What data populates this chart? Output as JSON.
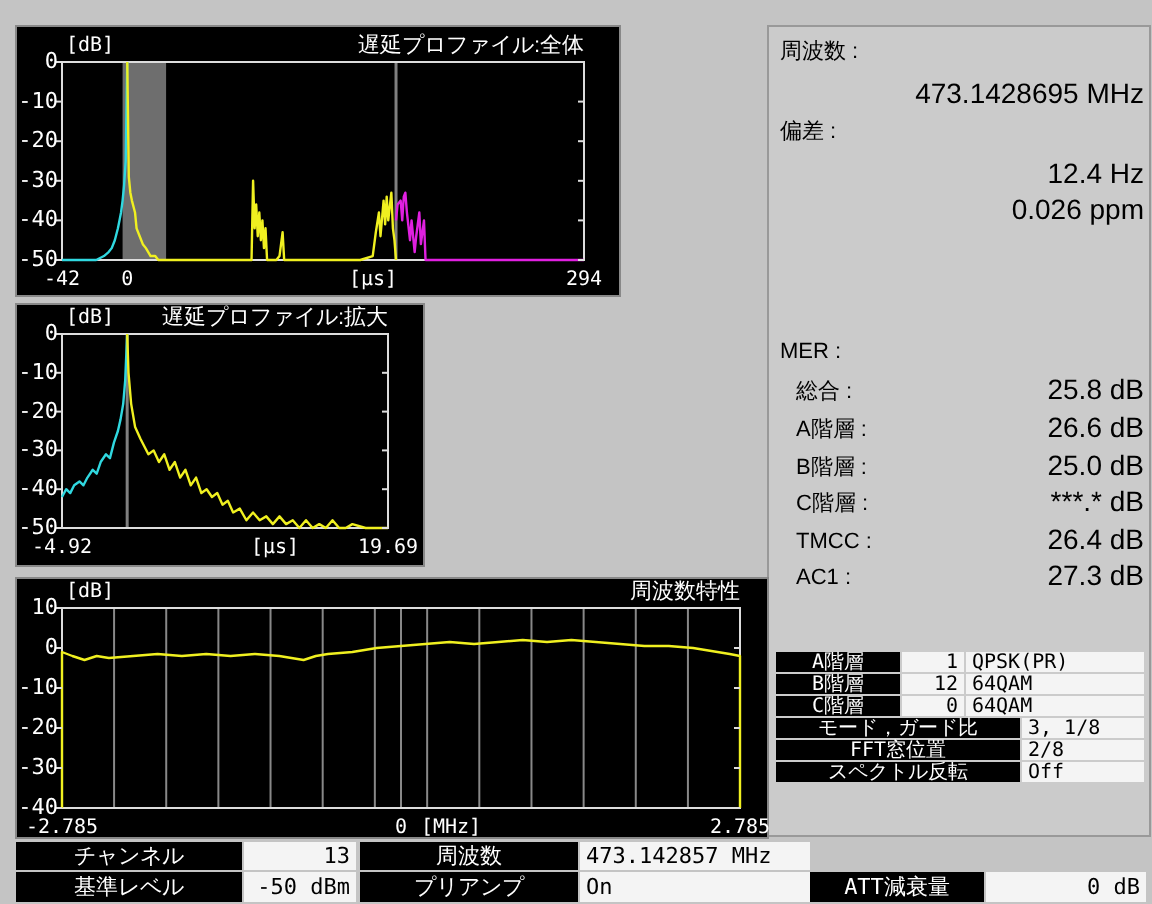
{
  "chart_data": [
    {
      "type": "line",
      "title": "遅延プロファイル:全体",
      "ylabel": "[dB]",
      "xlabel": "[μs]",
      "xlim": [
        -42,
        294
      ],
      "xticks": [
        -42,
        0,
        294
      ],
      "ylim": [
        -50,
        0
      ],
      "yticks": [
        0,
        -10,
        -20,
        -30,
        -40,
        -50
      ],
      "bands": [
        {
          "axis": "x",
          "from": -3,
          "to": 25,
          "color": "#6e6e6e"
        }
      ],
      "ref_lines": [
        {
          "axis": "x",
          "value": 173,
          "color": "#808080"
        }
      ],
      "series": [
        {
          "color": "#30d8e0",
          "x": [
            -42,
            -20,
            -15,
            -12,
            -10,
            -8,
            -6,
            -5,
            -4,
            -3,
            -2,
            -1,
            0
          ],
          "values": [
            -50,
            -50,
            -49,
            -48,
            -47,
            -45,
            -42,
            -40,
            -38,
            -35,
            -31,
            -25,
            0
          ]
        },
        {
          "color": "#f0f020",
          "x": [
            0,
            1,
            2,
            3,
            5,
            6,
            8,
            10,
            12,
            15,
            18,
            20,
            80,
            81,
            82,
            83,
            84,
            85,
            86,
            87,
            88,
            89,
            90,
            92,
            94,
            96,
            98,
            100,
            101,
            102,
            150,
            158,
            160,
            162,
            163,
            165,
            166,
            167,
            168,
            170,
            171,
            172,
            173
          ],
          "values": [
            0,
            -29,
            -33,
            -35,
            -38,
            -42,
            -44,
            -46,
            -47,
            -49,
            -49,
            -50,
            -50,
            -30,
            -42,
            -36,
            -44,
            -38,
            -45,
            -40,
            -47,
            -42,
            -50,
            -50,
            -50,
            -50,
            -49,
            -43,
            -50,
            -50,
            -50,
            -49,
            -43,
            -38,
            -44,
            -35,
            -41,
            -34,
            -40,
            -33,
            -42,
            -45,
            -50
          ]
        },
        {
          "color": "#e020e0",
          "x": [
            173,
            174,
            176,
            177,
            178,
            179,
            180,
            182,
            183,
            185,
            186,
            188,
            189,
            191,
            192,
            294
          ],
          "values": [
            -40,
            -36,
            -35,
            -40,
            -34,
            -33,
            -38,
            -45,
            -40,
            -48,
            -44,
            -38,
            -46,
            -40,
            -50,
            -50
          ]
        }
      ]
    },
    {
      "type": "line",
      "title": "遅延プロファイル:拡大",
      "ylabel": "[dB]",
      "xlabel": "[μs]",
      "xlim": [
        -4.92,
        19.69
      ],
      "xticks": [
        -4.92,
        19.69
      ],
      "ylim": [
        -50,
        0
      ],
      "yticks": [
        0,
        -10,
        -20,
        -30,
        -40,
        -50
      ],
      "ref_lines": [
        {
          "axis": "x",
          "value": 0,
          "color": "#808080"
        }
      ],
      "series": [
        {
          "color": "#30d8e0",
          "x": [
            -4.92,
            -4.6,
            -4.3,
            -4,
            -3.6,
            -3.3,
            -3,
            -2.6,
            -2.3,
            -2,
            -1.6,
            -1.3,
            -1,
            -0.7,
            -0.5,
            -0.3,
            -0.15,
            0
          ],
          "values": [
            -42,
            -40,
            -41,
            -39,
            -38,
            -39,
            -37,
            -35,
            -36,
            -33,
            -31,
            -32,
            -28,
            -25,
            -22,
            -18,
            -12,
            0
          ]
        },
        {
          "color": "#f0f020",
          "x": [
            0,
            0.1,
            0.3,
            0.6,
            1,
            1.3,
            1.6,
            2,
            2.4,
            2.8,
            3.2,
            3.6,
            4,
            4.4,
            4.8,
            5.2,
            5.6,
            6,
            6.4,
            6.8,
            7.2,
            7.6,
            8,
            8.5,
            9,
            9.5,
            10,
            10.5,
            11,
            11.5,
            12,
            12.5,
            13,
            13.5,
            14,
            14.5,
            15,
            15.5,
            16,
            16.5,
            17,
            18,
            19,
            19.69
          ],
          "values": [
            0,
            -10,
            -18,
            -24,
            -27,
            -29,
            -31,
            -30,
            -33,
            -31,
            -35,
            -33,
            -37,
            -35,
            -39,
            -37,
            -41,
            -40,
            -42,
            -41,
            -44,
            -43,
            -46,
            -45,
            -48,
            -46,
            -48,
            -47,
            -49,
            -47,
            -49,
            -48,
            -50,
            -48,
            -50,
            -49,
            -50,
            -48,
            -50,
            -50,
            -49,
            -50,
            -50,
            -50
          ]
        }
      ]
    },
    {
      "type": "line",
      "title": "周波数特性",
      "ylabel": "[dB]",
      "xlabel": "[MHz]",
      "xlim": [
        -2.785,
        2.785
      ],
      "ylim": [
        -40,
        10
      ],
      "yticks": [
        10,
        0,
        -10,
        -20,
        -30,
        -40
      ],
      "grid": "x",
      "xticks": [
        -2.785,
        {
          "value": -2.3572,
          "label": null
        },
        {
          "value": -1.9288,
          "label": null
        },
        {
          "value": -1.5003,
          "label": null
        },
        {
          "value": -1.0718,
          "label": null
        },
        {
          "value": -0.6434,
          "label": null
        },
        {
          "value": -0.2149,
          "label": null
        },
        0,
        {
          "value": 0.2149,
          "label": null
        },
        {
          "value": 0.6434,
          "label": null
        },
        {
          "value": 1.0718,
          "label": null
        },
        {
          "value": 1.5003,
          "label": null
        },
        {
          "value": 1.9288,
          "label": null
        },
        {
          "value": 2.3572,
          "label": null
        },
        2.785
      ],
      "series": [
        {
          "color": "#f0f020",
          "x": [
            -2.785,
            -2.785,
            -2.7,
            -2.6,
            -2.5,
            -2.4,
            -2.2,
            -2.0,
            -1.8,
            -1.6,
            -1.4,
            -1.2,
            -1.0,
            -0.9,
            -0.8,
            -0.7,
            -0.6,
            -0.4,
            -0.2,
            0,
            0.2,
            0.4,
            0.6,
            0.8,
            1.0,
            1.2,
            1.4,
            1.6,
            1.8,
            2.0,
            2.2,
            2.4,
            2.5,
            2.6,
            2.7,
            2.785,
            2.785
          ],
          "values": [
            -40,
            -1,
            -2,
            -3,
            -2,
            -2.5,
            -2,
            -1.5,
            -2,
            -1.5,
            -2,
            -1.5,
            -2,
            -2.5,
            -3,
            -2,
            -1.5,
            -1,
            0,
            0.5,
            1,
            1.5,
            1,
            1.5,
            2,
            1.5,
            2,
            1.5,
            1,
            0.5,
            0.5,
            0,
            -0.5,
            -1,
            -1.5,
            -2,
            -40
          ]
        }
      ]
    },
    {
      "type": "other",
      "annotations": [
        "周波数 :",
        "473.1428695 MHz",
        "偏差 :",
        "12.4 Hz",
        "0.026 ppm"
      ]
    },
    {
      "type": "other",
      "annotations": [
        "MER :",
        "総合 :",
        "25.8 dB",
        "A階層 :",
        "26.6 dB",
        "B階層 :",
        "25.0 dB",
        "C階層 :",
        "***.* dB",
        "TMCC :",
        "26.4 dB",
        "AC1 :",
        "27.3 dB"
      ]
    },
    {
      "type": "other",
      "annotations": [
        "A階層",
        "1",
        "QPSK(PR)",
        "B階層",
        "12",
        "64QAM",
        "C階層",
        "0",
        "64QAM",
        "モード，ガード比",
        "3, 1/8",
        "FFT窓位置",
        "2/8",
        "スペクトル反転",
        "Off"
      ]
    },
    {
      "type": "other",
      "annotations": [
        "チャンネル",
        "13",
        "周波数",
        "473.142857 MHz",
        "基準レベル",
        "-50 dBm",
        "プリアンプ",
        "On",
        "ATT減衰量",
        "0 dB"
      ]
    }
  ]
}
